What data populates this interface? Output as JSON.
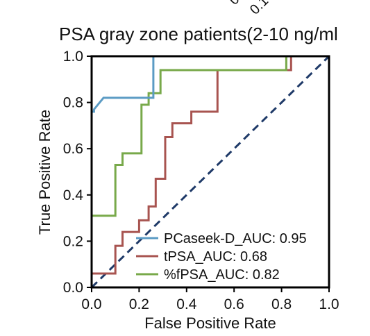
{
  "chart_data": {
    "type": "line",
    "title": "PSA gray zone patients(2-10 ng/ml",
    "xlabel": "False Positive Rate",
    "ylabel": "True Positive Rate",
    "xlim": [
      0,
      1
    ],
    "ylim": [
      0,
      1
    ],
    "xticks": [
      "0.0",
      "0.2",
      "0.4",
      "0.6",
      "0.8",
      "1.0"
    ],
    "yticks": [
      "0.0",
      "0.2",
      "0.4",
      "0.6",
      "0.8",
      "1.0"
    ],
    "grid": false,
    "legend_position": "bottom-right",
    "top_clipped_text": [
      "0.",
      "0.1"
    ],
    "colors": {
      "diagonal": "#1f3a68"
    },
    "series": [
      {
        "name": "PCaseek-D_AUC: 0.95",
        "color": "#5b9bc4",
        "x": [
          0,
          0,
          0.01,
          0.01,
          0.05,
          0.05,
          0.26,
          0.26,
          1.0
        ],
        "y": [
          0,
          0.76,
          0.76,
          0.77,
          0.82,
          0.82,
          0.82,
          1.0,
          1.0
        ]
      },
      {
        "name": "tPSA_AUC: 0.68",
        "color": "#a85450",
        "x": [
          0,
          0,
          0.1,
          0.1,
          0.13,
          0.13,
          0.2,
          0.2,
          0.24,
          0.24,
          0.27,
          0.27,
          0.31,
          0.31,
          0.34,
          0.34,
          0.42,
          0.42,
          0.53,
          0.53,
          0.84,
          0.84,
          1.0
        ],
        "y": [
          0,
          0.06,
          0.06,
          0.18,
          0.18,
          0.24,
          0.24,
          0.29,
          0.29,
          0.35,
          0.35,
          0.47,
          0.47,
          0.65,
          0.65,
          0.71,
          0.71,
          0.76,
          0.76,
          0.94,
          0.94,
          1.0,
          1.0
        ]
      },
      {
        "name": "%fPSA_AUC: 0.82",
        "color": "#78a94a",
        "x": [
          0,
          0,
          0.1,
          0.1,
          0.13,
          0.13,
          0.21,
          0.21,
          0.24,
          0.24,
          0.29,
          0.29,
          0.41,
          0.41,
          0.82,
          0.82,
          1.0
        ],
        "y": [
          0,
          0.31,
          0.31,
          0.53,
          0.53,
          0.58,
          0.58,
          0.79,
          0.79,
          0.84,
          0.84,
          0.94,
          0.94,
          0.94,
          0.94,
          1.0,
          1.0
        ]
      }
    ],
    "diagonal": {
      "x": [
        0,
        1
      ],
      "y": [
        0,
        1
      ]
    }
  }
}
